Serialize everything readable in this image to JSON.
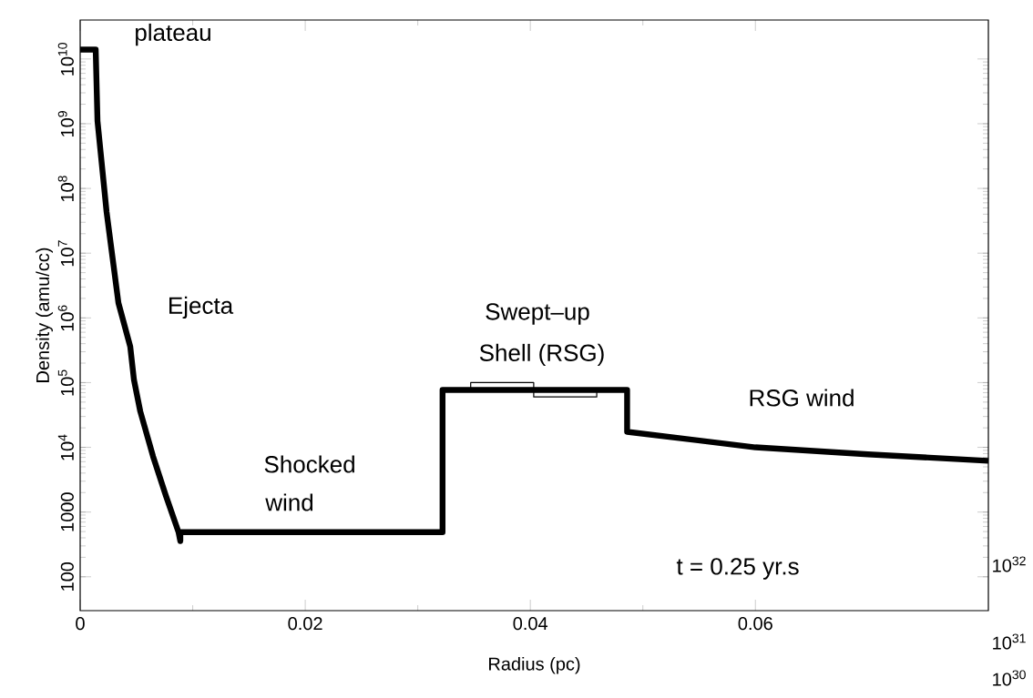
{
  "chart_data": {
    "type": "line",
    "xlabel": "Radius (pc)",
    "ylabel": "Density (amu/cc)",
    "log": "y",
    "xlim": [
      0,
      0.0807
    ],
    "ylim": [
      30,
      40000000000.0
    ],
    "xticks": [
      0,
      0.02,
      0.04,
      0.06
    ],
    "yticks": [
      100,
      1000,
      {
        "value": 10000,
        "label": "10$^{4}$"
      },
      {
        "value": 100000,
        "label": "10$^{5}$"
      },
      {
        "value": 1000000,
        "label": "10$^{6}$"
      },
      {
        "value": 10000000,
        "label": "10$^{7}$"
      },
      {
        "value": 100000000,
        "label": "10$^{8}$"
      },
      {
        "value": 1000000000,
        "label": "10$^{9}$"
      },
      {
        "value": 10000000000,
        "label": "10$^{10}$"
      }
    ],
    "series": [
      {
        "color": "#000000",
        "x": [
          0,
          0.00138,
          0.00154,
          0.00235,
          0.0034,
          0.00445,
          0.00478,
          0.00534,
          0.00648,
          0.00761,
          0.00874,
          0.0089,
          0.0089,
          0.0322,
          0.0322,
          0.0486,
          0.0486,
          0.06,
          0.07,
          0.0807
        ],
        "values": [
          14000000000.0,
          14000000000.0,
          1100000000.0,
          43000000.0,
          1700000.0,
          360000.0,
          110000.0,
          36000.0,
          7200,
          1800,
          490,
          357,
          490,
          490,
          77000,
          77000,
          17400,
          10000,
          7800,
          6200
        ]
      },
      {
        "color": "#000000",
        "x": [
          0.0347,
          0.0347,
          0.0403,
          0.0403,
          0.0459,
          0.0459
        ],
        "values": [
          77000,
          100000,
          100000,
          60000,
          60000,
          77000
        ]
      }
    ],
    "annotations": [
      "plateau",
      "Ejecta",
      "Swept–up",
      "Shell (RSG)",
      "Shocked",
      "wind",
      "RSG wind",
      "t = 0.25  yr.s",
      "10$^{32}$",
      "10$^{31}$",
      "10$^{30}$"
    ]
  }
}
